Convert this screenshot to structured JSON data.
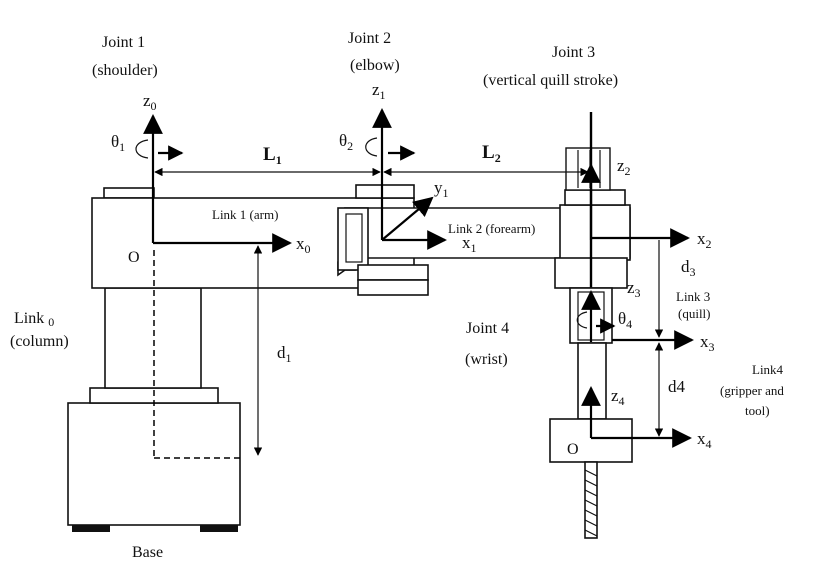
{
  "joints": {
    "j1_title": "Joint 1",
    "j1_sub": "(shoulder)",
    "j2_title": "Joint 2",
    "j2_sub": "(elbow)",
    "j3_title": "Joint 3",
    "j3_sub": "(vertical quill stroke)",
    "j4_title": "Joint 4",
    "j4_sub": "(wrist)"
  },
  "links": {
    "link0_a": "Link",
    "link0_b": "0",
    "link0_c": "(column)",
    "link1": "Link 1 (arm)",
    "link2": "Link 2 (forearm)",
    "link3_a": "Link 3",
    "link3_b": "(quill)",
    "link4_a": "Link4",
    "link4_b": "(gripper and",
    "link4_c": "tool)",
    "base": "Base"
  },
  "axes": {
    "z0": "z",
    "z0_sub": "0",
    "x0": "x",
    "x0_sub": "0",
    "z1": "z",
    "z1_sub": "1",
    "x1": "x",
    "x1_sub": "1",
    "y1": "y",
    "y1_sub": "1",
    "z2": "z",
    "z2_sub": "2",
    "x2": "x",
    "x2_sub": "2",
    "z3": "z",
    "z3_sub": "3",
    "x3": "x",
    "x3_sub": "3",
    "z4": "z",
    "z4_sub": "4",
    "x4": "x",
    "x4_sub": "4"
  },
  "params": {
    "theta1": "θ",
    "theta1_sub": "1",
    "theta2": "θ",
    "theta2_sub": "2",
    "theta4": "θ",
    "theta4_sub": "4",
    "L1": "L",
    "L1_sub": "1",
    "L2": "L",
    "L2_sub": "2",
    "d1": "d",
    "d1_sub": "1",
    "d3": "d",
    "d3_sub": "3",
    "d4": "d4"
  },
  "origins": {
    "o_base": "O",
    "o_tool": "O"
  }
}
